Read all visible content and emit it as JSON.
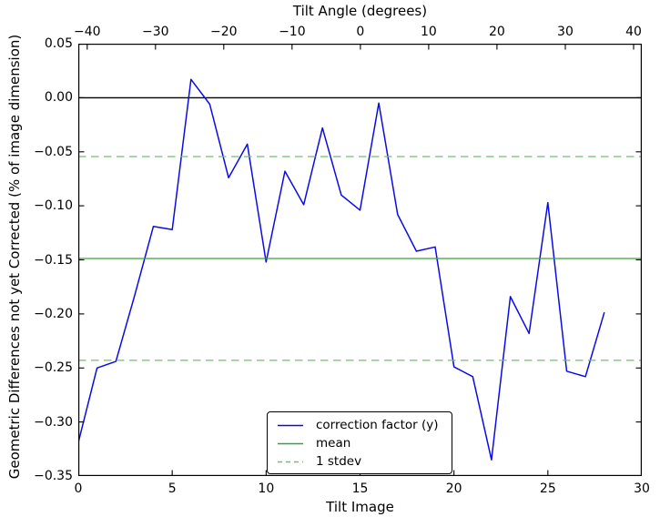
{
  "figure": {
    "background": "#ffffff"
  },
  "axes": {
    "top_label": "Tilt Angle (degrees)",
    "bottom_label": "Tilt Image",
    "left_label": "Geometric Differences not yet Corrected (% of image dimension)"
  },
  "legend": {
    "items": [
      {
        "label": "correction factor (y)",
        "color": "#0b0be6",
        "style": "solid"
      },
      {
        "label": "mean",
        "color": "#3ba03b",
        "style": "solid"
      },
      {
        "label": "1 stdev",
        "color": "#6fbf6f",
        "style": "dashed"
      }
    ]
  },
  "chart_data": {
    "type": "line",
    "title": "Tilt Angle (degrees)",
    "xlabel": "Tilt Image",
    "ylabel": "Geometric Differences not yet Corrected (% of image dimension)",
    "xlim": [
      0,
      30
    ],
    "ylim": [
      -0.35,
      0.05
    ],
    "x_ticks": [
      0,
      5,
      10,
      15,
      20,
      25,
      30
    ],
    "y_ticks": [
      0.05,
      0.0,
      -0.05,
      -0.1,
      -0.15,
      -0.2,
      -0.25,
      -0.3,
      -0.35
    ],
    "top_axis": {
      "label": "Tilt Angle (degrees)",
      "ticks": [
        -40,
        -30,
        -20,
        -10,
        0,
        10,
        20,
        30,
        40
      ],
      "lim": [
        -41.3,
        41.2
      ]
    },
    "grid": false,
    "legend_position": "lower center",
    "series": [
      {
        "name": "zero line",
        "type": "hline",
        "color": "#000000",
        "linestyle": "solid",
        "y": [
          0.0
        ]
      },
      {
        "name": "correction factor (y)",
        "type": "line",
        "color": "#0b0be6",
        "linestyle": "solid",
        "x": [
          0,
          1,
          2,
          3,
          4,
          5,
          6,
          7,
          8,
          9,
          10,
          11,
          12,
          13,
          14,
          15,
          16,
          17,
          18,
          19,
          20,
          21,
          22,
          23,
          24,
          25,
          26,
          27,
          28
        ],
        "y": [
          -0.319,
          -0.25,
          -0.244,
          -0.183,
          -0.119,
          -0.122,
          0.017,
          -0.006,
          -0.074,
          -0.043,
          -0.152,
          -0.068,
          -0.099,
          -0.028,
          -0.09,
          -0.104,
          -0.005,
          -0.108,
          -0.142,
          -0.138,
          -0.249,
          -0.258,
          -0.335,
          -0.184,
          -0.218,
          -0.097,
          -0.253,
          -0.258,
          -0.199
        ]
      },
      {
        "name": "mean",
        "type": "hline",
        "color": "#3ba03b",
        "linestyle": "solid",
        "y": [
          -0.1487
        ]
      },
      {
        "name": "1 stdev",
        "type": "hline",
        "color": "#6fbf6f",
        "linestyle": "dashed",
        "y": [
          -0.0544,
          -0.243
        ]
      }
    ]
  }
}
